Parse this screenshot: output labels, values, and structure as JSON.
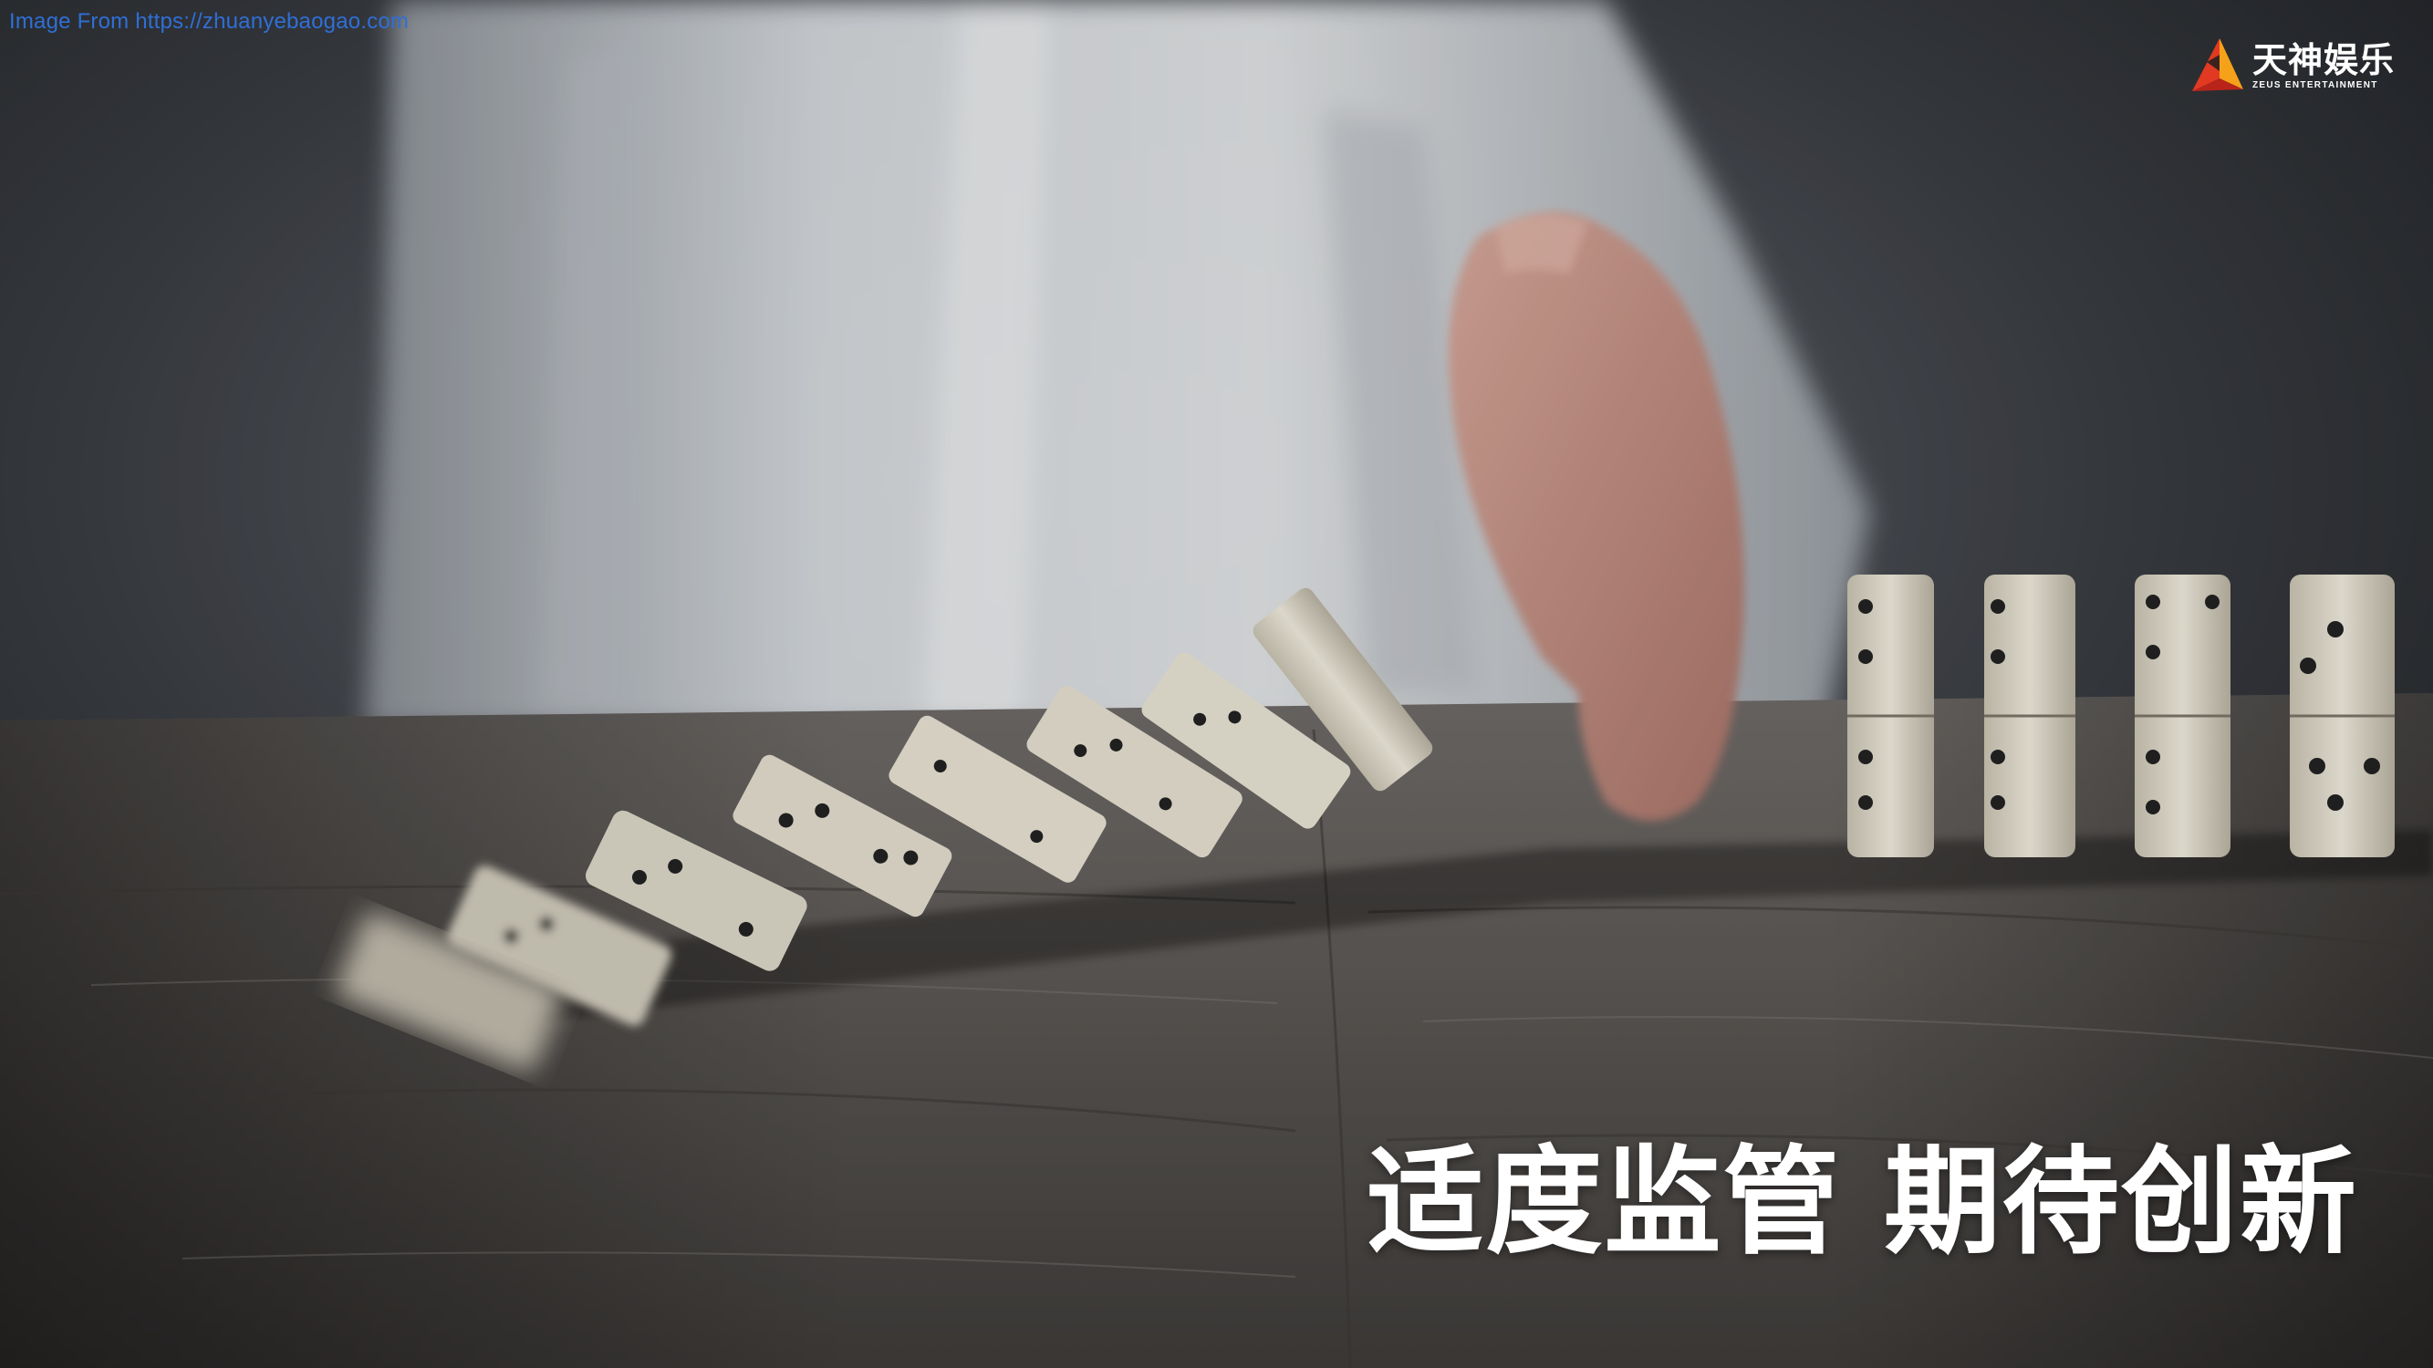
{
  "watermark": "Image From https://zhuanyebaogao.com",
  "logo": {
    "name_cn": "天神娱乐",
    "name_en": "ZEUS ENTERTAINMENT",
    "colors": {
      "orange": "#f5a21a",
      "red": "#e23a22"
    }
  },
  "headline": "适度监管 期待创新",
  "photo": {
    "icon": "domino-hand-photo",
    "colors": {
      "background": "#2a2c30",
      "table": "#6a6562",
      "domino": "#eeeadc",
      "skin": "#c99488",
      "shirt": "#d8dce0"
    }
  }
}
